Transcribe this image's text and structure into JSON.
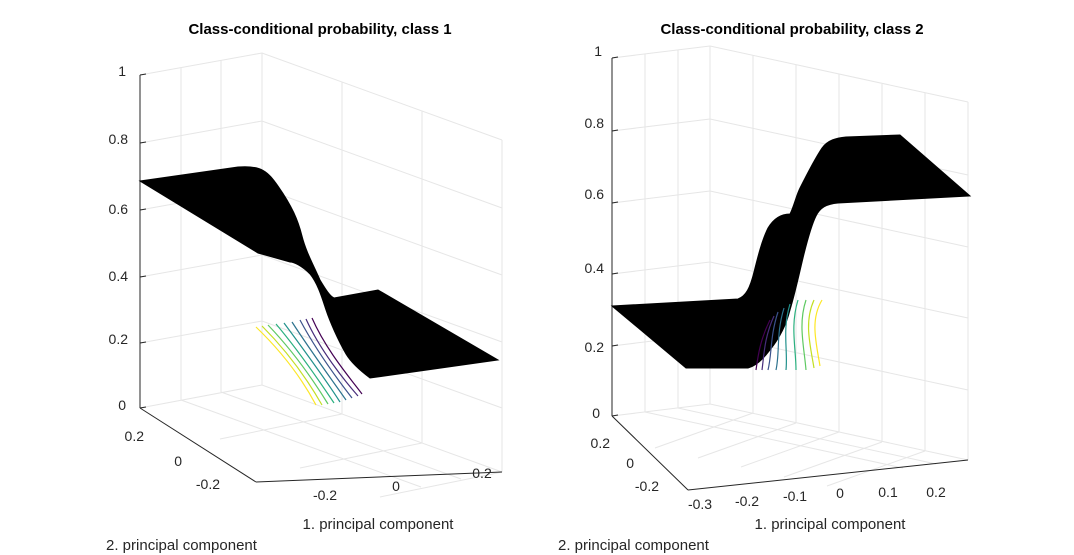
{
  "chart_data": [
    {
      "type": "surface",
      "title": "Class-conditional probability, class 1",
      "xlabel": "1. principal component",
      "ylabel": "2. principal component",
      "zlabel": "",
      "x_ticks": [
        "-0.2",
        "0",
        "0.2"
      ],
      "y_ticks": [
        "-0.2",
        "0",
        "0.2"
      ],
      "z_ticks": [
        "0",
        "0.2",
        "0.4",
        "0.6",
        "0.8",
        "1"
      ],
      "zlim": [
        0,
        1
      ],
      "grid": true,
      "surface_color": "#000000",
      "contour_colors": [
        "#440154",
        "#3b528b",
        "#21918c",
        "#5ec962",
        "#fde725"
      ]
    },
    {
      "type": "surface",
      "title": "Class-conditional probability, class 2",
      "xlabel": "1. principal component",
      "ylabel": "2. principal component",
      "zlabel": "",
      "x_ticks": [
        "-0.3",
        "-0.2",
        "-0.1",
        "0",
        "0.1",
        "0.2"
      ],
      "y_ticks": [
        "-0.2",
        "0",
        "0.2"
      ],
      "z_ticks": [
        "0",
        "0.2",
        "0.4",
        "0.6",
        "0.8",
        "1"
      ],
      "zlim": [
        0,
        1
      ],
      "grid": true,
      "surface_color": "#000000",
      "contour_colors": [
        "#440154",
        "#3b528b",
        "#21918c",
        "#5ec962",
        "#fde725"
      ]
    }
  ]
}
